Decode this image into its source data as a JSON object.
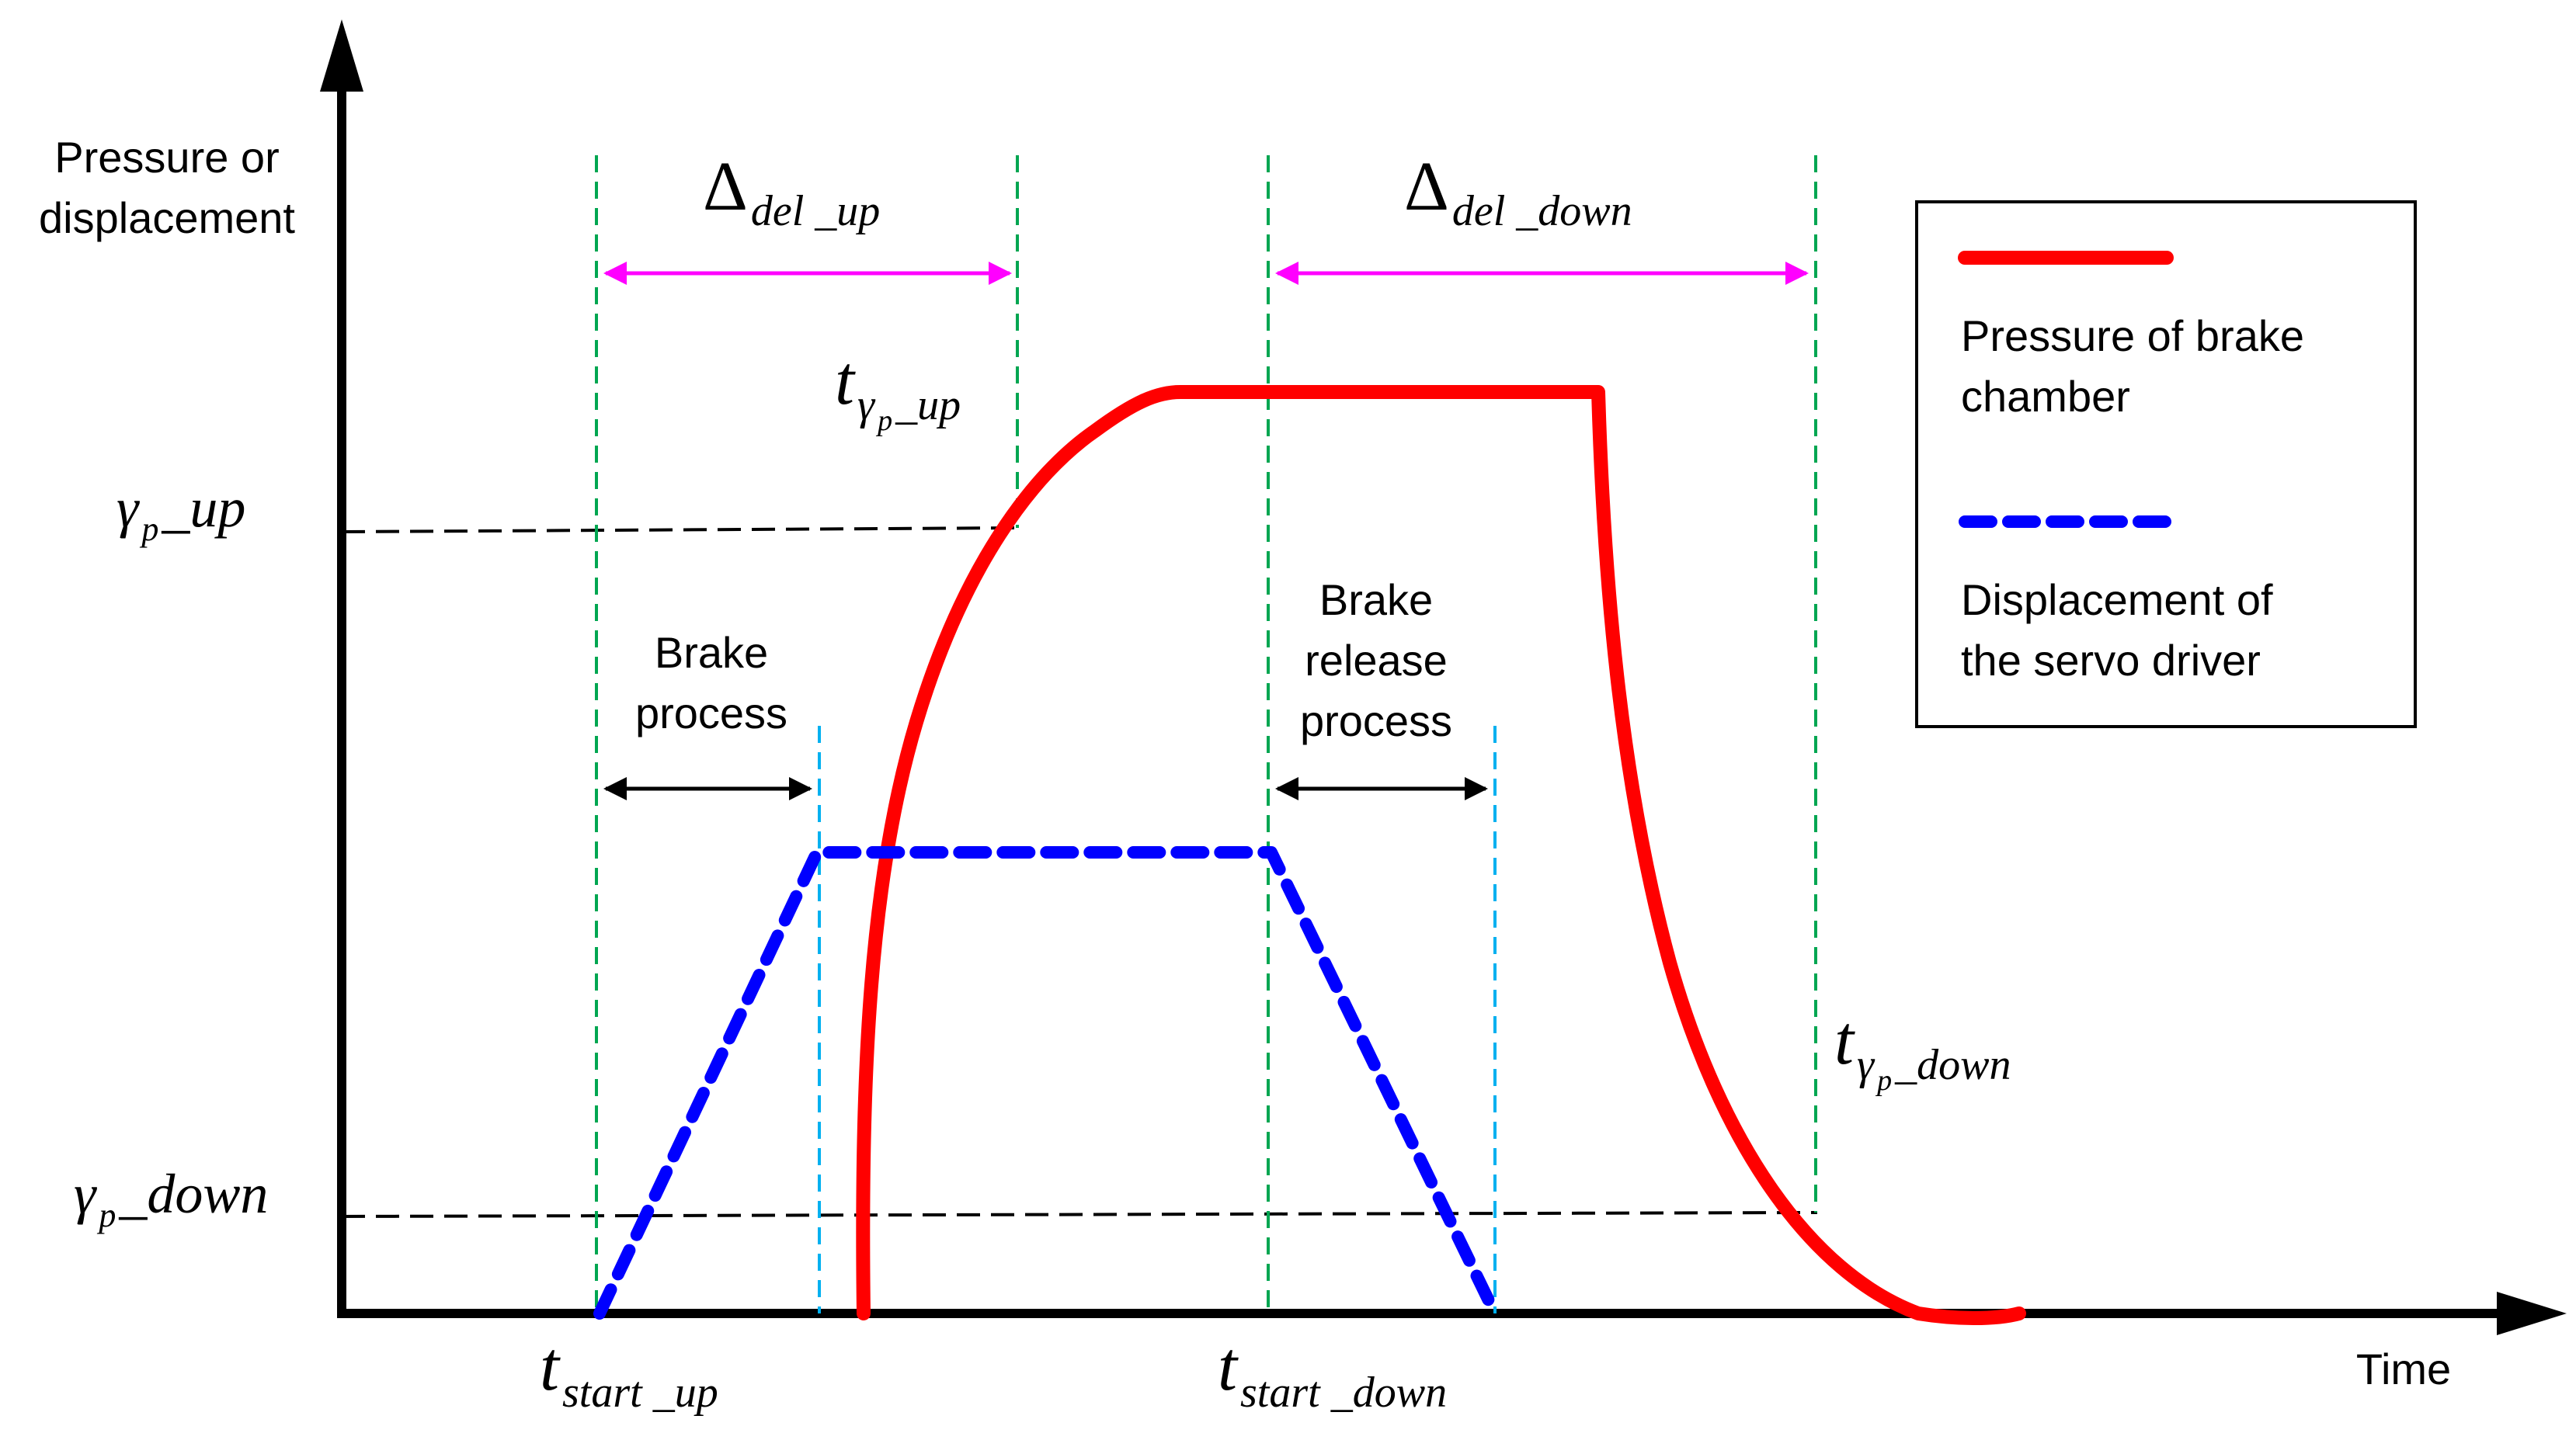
{
  "axes": {
    "y_label_line1": "Pressure or",
    "y_label_line2": "displacement",
    "x_label": "Time"
  },
  "levels": {
    "up": {
      "sym": "γ",
      "sub": "p",
      "tail": " _up"
    },
    "down": {
      "sym": "γ",
      "sub": "p",
      "tail": " _down"
    }
  },
  "times": {
    "start_up": {
      "sym": "t",
      "sub": "start _up"
    },
    "start_down": {
      "sym": "t",
      "sub": "start _down"
    },
    "gamma_up": {
      "sym": "t",
      "sub_sym": "γ",
      "sub_sub": "p",
      "sub_tail": " _up"
    },
    "gamma_down": {
      "sym": "t",
      "sub_sym": "γ",
      "sub_sub": "p",
      "sub_tail": " _down"
    }
  },
  "delays": {
    "up": {
      "sym": "Δ",
      "sub": "del _up"
    },
    "down": {
      "sym": "Δ",
      "sub": "del _down"
    }
  },
  "phases": {
    "brake": {
      "line1": "Brake",
      "line2": "process"
    },
    "release": {
      "line1": "Brake",
      "line2": "release",
      "line3": "process"
    }
  },
  "legend": {
    "pressure_line1": "Pressure of brake",
    "pressure_line2": "chamber",
    "displacement_line1": "Displacement of",
    "displacement_line2": "the servo driver"
  },
  "colors": {
    "pressure": "#ff0000",
    "displacement": "#0000ff",
    "delay_arrow": "#ff00ff",
    "guide_green": "#00a651",
    "guide_cyan": "#00b0f0",
    "axis": "#000000"
  }
}
